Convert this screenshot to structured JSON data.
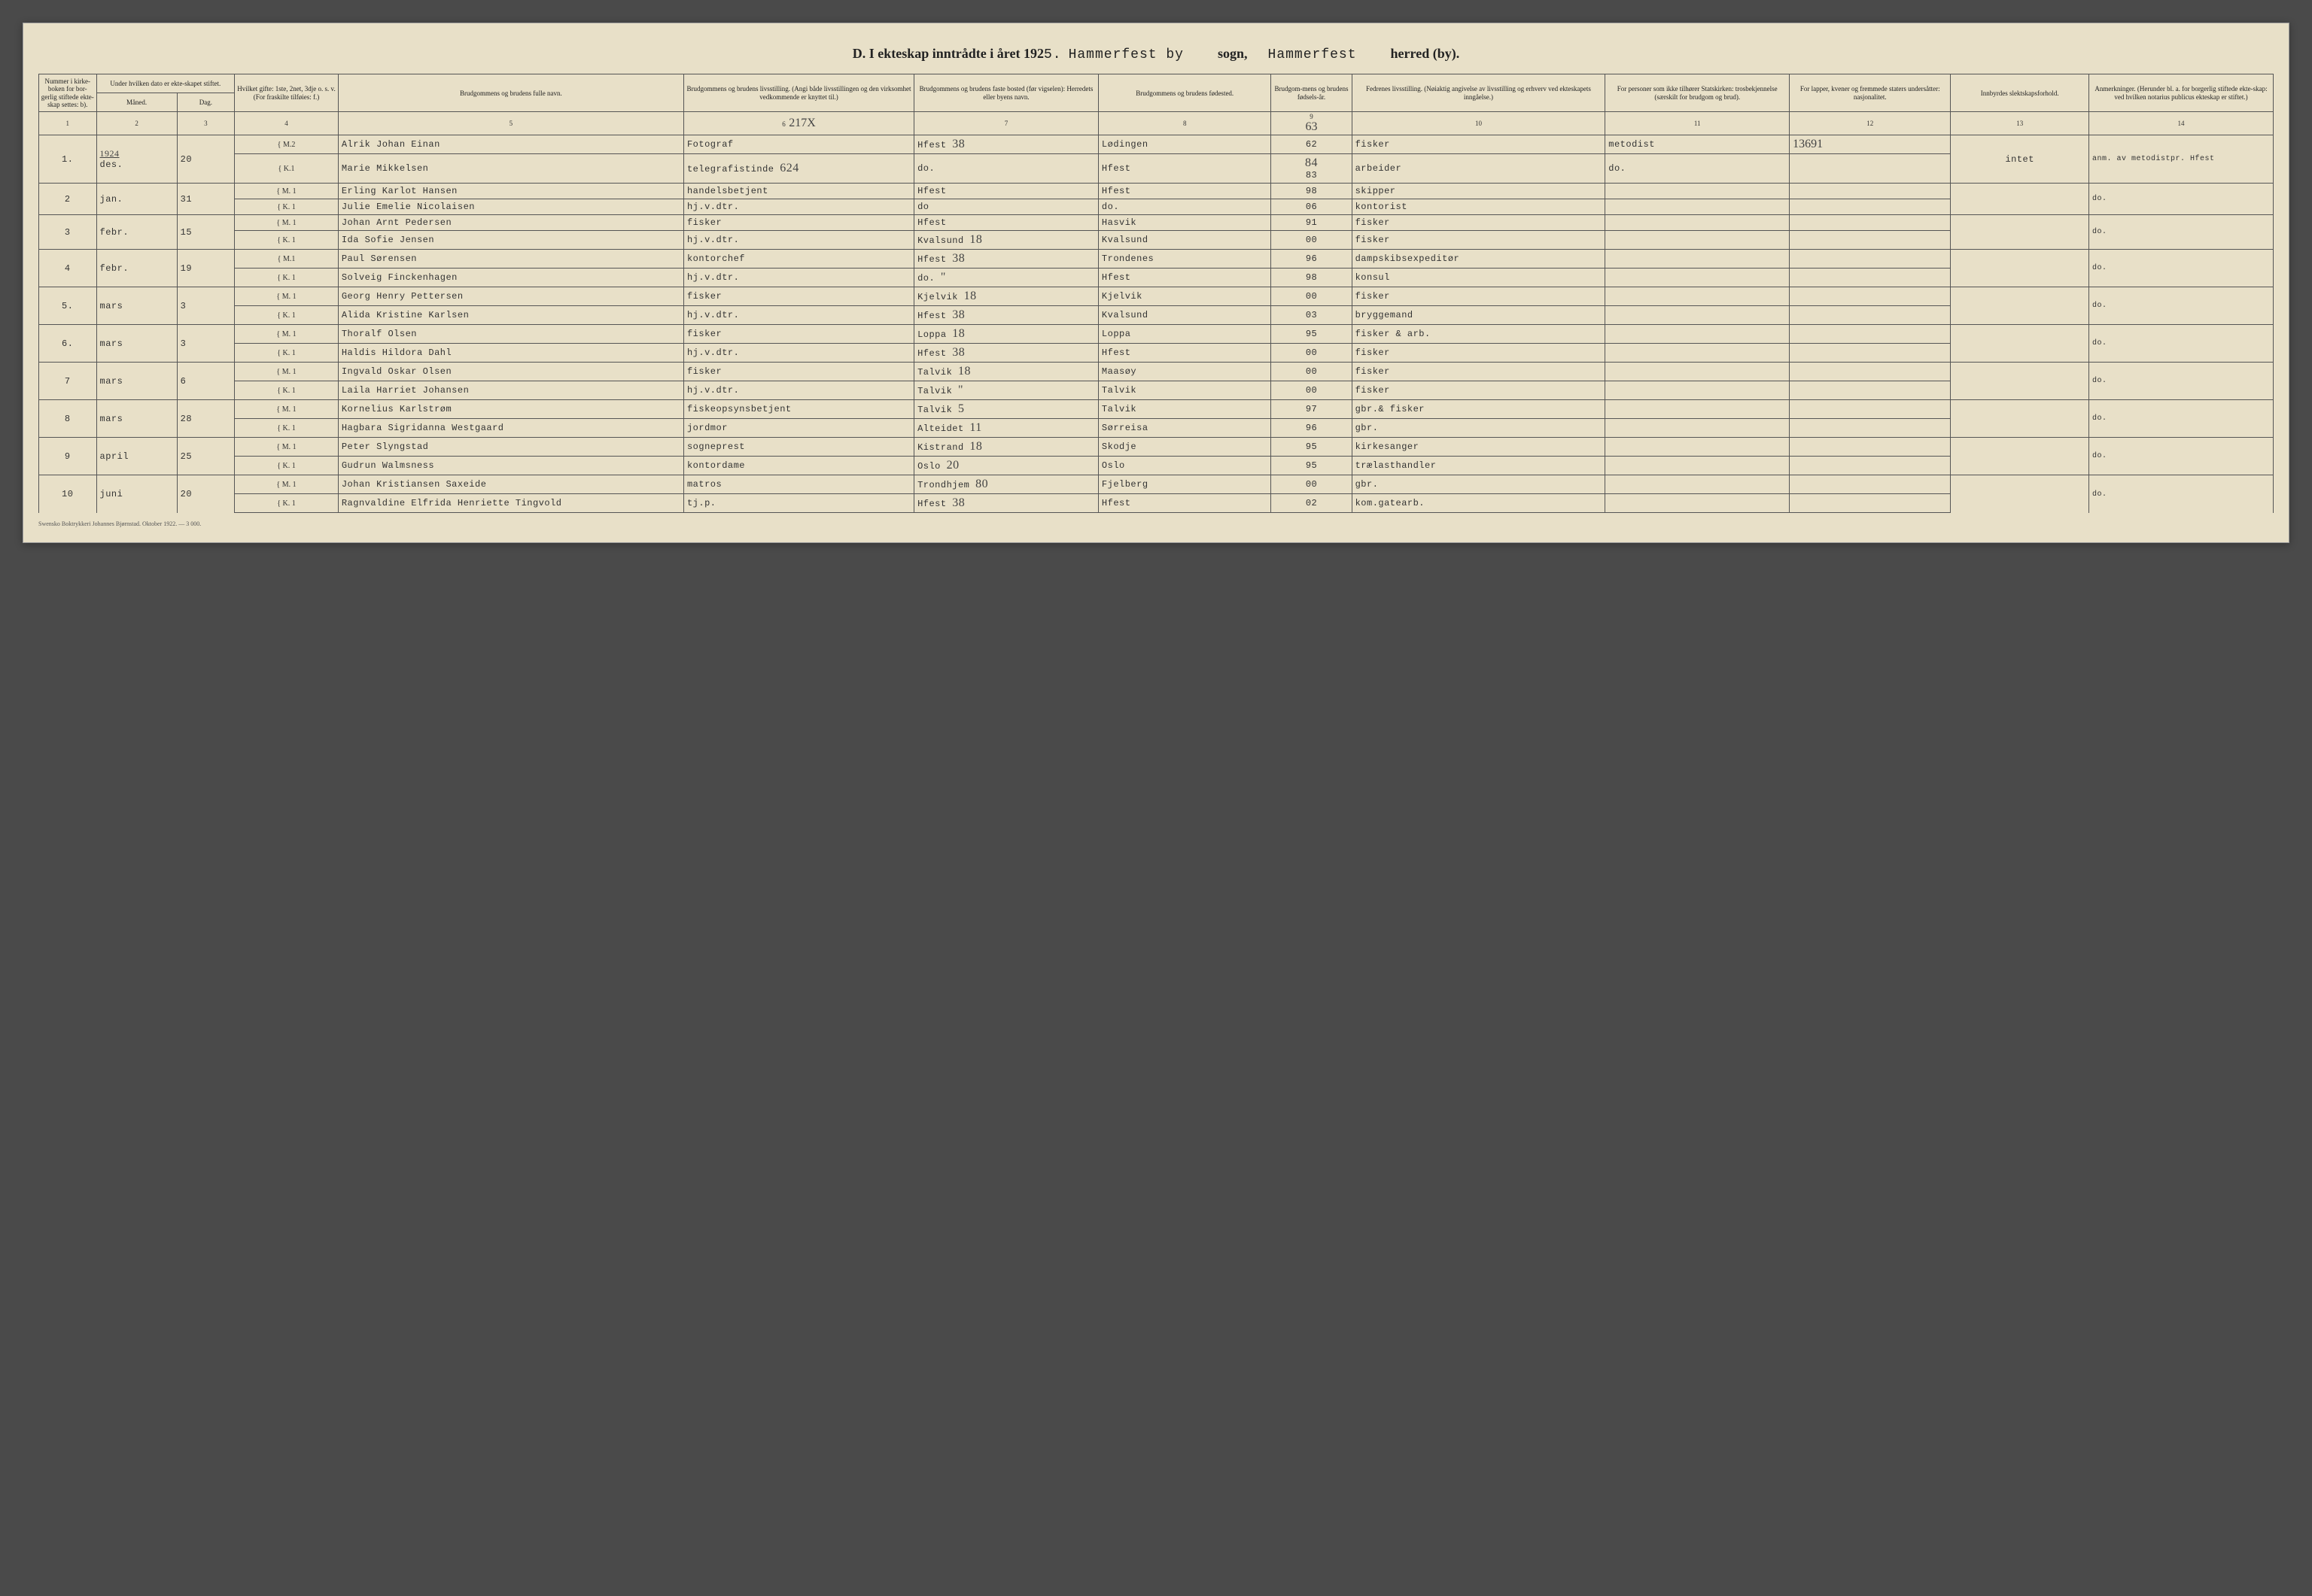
{
  "header": {
    "prefix": "D.  I ekteskap inntrådte i året 192",
    "year_suffix": "5.",
    "place1": "Hammerfest by",
    "label_sogn": "sogn,",
    "place2": "Hammerfest",
    "label_herred": "herred (by)."
  },
  "columns": [
    {
      "n": "1",
      "label": "Nummer i kirke-boken for bor-gerlig stiftede ekte-skap settes: b)."
    },
    {
      "n": "2",
      "label": "Under hvilken dato er ekte-skapet stiftet."
    },
    {
      "n": "3",
      "label": ""
    },
    {
      "n": "4",
      "label": "Hvilket gifte: 1ste, 2net, 3dje o. s. v. (For fraskilte tilføies: f.)"
    },
    {
      "n": "5",
      "label": "Brudgommens og brudens fulle navn."
    },
    {
      "n": "6",
      "label": "Brudgommens og brudens livsstilling. (Angi både livsstillingen og den virksomhet vedkommende er knyttet til.)"
    },
    {
      "n": "7",
      "label": "Brudgommens og brudens faste bosted (før vigselen): Herredets eller byens navn."
    },
    {
      "n": "8",
      "label": "Brudgommens og brudens fødested."
    },
    {
      "n": "9",
      "label": "Brudgom-mens og brudens fødsels-år."
    },
    {
      "n": "10",
      "label": "Fedrenes livsstilling. (Nøiaktig angivelse av livsstilling og erhverv ved ekteskapets inngåelse.)"
    },
    {
      "n": "11",
      "label": "For personer som ikke tilhører Statskirken: trosbekjennelse (særskilt for brudgom og brud)."
    },
    {
      "n": "12",
      "label": "For lapper, kvener og fremmede staters undersåtter: nasjonalitet."
    },
    {
      "n": "13",
      "label": "Innbyrdes slektskapsforhold."
    },
    {
      "n": "14",
      "label": "Anmerkninger. (Herunder bl. a. for borgerlig stiftede ekte-skap: ved hvilken notarius publicus ekteskap er stiftet.)"
    }
  ],
  "sub_date": {
    "a": "Måned.",
    "b": "Dag."
  },
  "handwritten_over_col6": "217X",
  "handwritten_over_col9": "63",
  "entries": [
    {
      "num": "1.",
      "month": "des.",
      "day": "20",
      "m_gift": "M.2",
      "m_name": "Alrik Johan Einan",
      "m_occ": "Fotograf",
      "m_res": "Hfest",
      "m_res_hand": "38",
      "m_born": "Lødingen",
      "m_yr": "62",
      "m_fath": "fisker",
      "m_stat": "metodist",
      "m_nat_hand": "13691",
      "k_gift": "K.1",
      "k_name": "Marie Mikkelsen",
      "k_occ": "telegrafistinde",
      "k_occ_hand": "624",
      "k_res": "do.",
      "k_born": "Hfest",
      "k_yr": "83",
      "k_yr_hand": "84",
      "k_fath": "arbeider",
      "k_stat": "do.",
      "rel": "intet",
      "rem": "anm. av metodistpr. Hfest",
      "year_hand": "1924"
    },
    {
      "num": "2",
      "month": "jan.",
      "day": "31",
      "m_gift": "M. 1",
      "m_name": "Erling Karlot Hansen",
      "m_occ": "handelsbetjent",
      "m_res": "Hfest",
      "m_born": "Hfest",
      "m_yr": "98",
      "m_fath": "skipper",
      "k_gift": "K. 1",
      "k_name": "Julie Emelie Nicolaisen",
      "k_occ": "hj.v.dtr.",
      "k_res": "do",
      "k_born": "do.",
      "k_yr": "06",
      "k_fath": "kontorist",
      "rel": "",
      "rem": "do."
    },
    {
      "num": "3",
      "month": "febr.",
      "day": "15",
      "m_gift": "M. 1",
      "m_name": "Johan Arnt Pedersen",
      "m_occ": "fisker",
      "m_res": "Hfest",
      "m_born": "Hasvik",
      "m_yr": "91",
      "m_fath": "fisker",
      "k_gift": "K. 1",
      "k_name": "Ida Sofie Jensen",
      "k_occ": "hj.v.dtr.",
      "k_res": "Kvalsund",
      "k_res_hand": "18",
      "k_born": "Kvalsund",
      "k_yr": "00",
      "k_fath": "fisker",
      "rel": "",
      "rem": "do."
    },
    {
      "num": "4",
      "month": "febr.",
      "day": "19",
      "m_gift": "M.1",
      "m_name": "Paul Sørensen",
      "m_occ": "kontorchef",
      "m_res": "Hfest",
      "m_res_hand": "38",
      "m_born": "Trondenes",
      "m_yr": "96",
      "m_fath": "dampskibsexpeditør",
      "k_gift": "K. 1",
      "k_name": "Solveig Finckenhagen",
      "k_occ": "hj.v.dtr.",
      "k_res": "do.",
      "k_res_hand": "\"",
      "k_born": "Hfest",
      "k_yr": "98",
      "k_fath": "konsul",
      "rel": "",
      "rem": "do."
    },
    {
      "num": "5.",
      "month": "mars",
      "day": "3",
      "m_gift": "M. 1",
      "m_name": "Georg Henry Pettersen",
      "m_occ": "fisker",
      "m_res": "Kjelvik",
      "m_res_hand": "18",
      "m_born": "Kjelvik",
      "m_yr": "00",
      "m_fath": "fisker",
      "k_gift": "K. 1",
      "k_name": "Alida Kristine Karlsen",
      "k_occ": "hj.v.dtr.",
      "k_res": "Hfest",
      "k_res_hand": "38",
      "k_born": "Kvalsund",
      "k_yr": "03",
      "k_fath": "bryggemand",
      "rel": "",
      "rem": "do."
    },
    {
      "num": "6.",
      "month": "mars",
      "day": "3",
      "m_gift": "M. 1",
      "m_name": "Thoralf Olsen",
      "m_occ": "fisker",
      "m_res": "Loppa",
      "m_res_hand": "18",
      "m_born": "Loppa",
      "m_yr": "95",
      "m_fath": "fisker & arb.",
      "k_gift": "K. 1",
      "k_name": "Haldis Hildora Dahl",
      "k_occ": "hj.v.dtr.",
      "k_res": "Hfest",
      "k_res_hand": "38",
      "k_born": "Hfest",
      "k_yr": "00",
      "k_fath": "fisker",
      "rel": "",
      "rem": "do."
    },
    {
      "num": "7",
      "month": "mars",
      "day": "6",
      "m_gift": "M. 1",
      "m_name": "Ingvald Oskar Olsen",
      "m_occ": "fisker",
      "m_res": "Talvik",
      "m_res_hand": "18",
      "m_born": "Maasøy",
      "m_yr": "00",
      "m_fath": "fisker",
      "k_gift": "K. 1",
      "k_name": "Laila Harriet Johansen",
      "k_occ": "hj.v.dtr.",
      "k_res": "Talvik",
      "k_res_hand": "\"",
      "k_born": "Talvik",
      "k_yr": "00",
      "k_fath": "fisker",
      "rel": "",
      "rem": "do."
    },
    {
      "num": "8",
      "month": "mars",
      "day": "28",
      "m_gift": "M. 1",
      "m_name": "Kornelius Karlstrøm",
      "m_occ": "fiskeopsynsbetjent",
      "m_res": "Talvik",
      "m_res_hand": "5",
      "m_born": "Talvik",
      "m_yr": "97",
      "m_fath": "gbr.& fisker",
      "k_gift": "K. 1",
      "k_name": "Hagbara Sigridanna Westgaard",
      "k_occ": "jordmor",
      "k_res": "Alteidet",
      "k_res_hand": "11",
      "k_born": "Sørreisa",
      "k_yr": "96",
      "k_fath": "gbr.",
      "rel": "",
      "rem": "do."
    },
    {
      "num": "9",
      "month": "april",
      "day": "25",
      "m_gift": "M. 1",
      "m_name": "Peter Slyngstad",
      "m_occ": "sogneprest",
      "m_res": "Kistrand",
      "m_res_hand": "18",
      "m_born": "Skodje",
      "m_yr": "95",
      "m_fath": "kirkesanger",
      "k_gift": "K. 1",
      "k_name": "Gudrun Walmsness",
      "k_occ": "kontordame",
      "k_res": "Oslo",
      "k_res_hand": "20",
      "k_born": "Oslo",
      "k_yr": "95",
      "k_fath": "trælasthandler",
      "rel": "",
      "rem": "do."
    },
    {
      "num": "10",
      "month": "juni",
      "day": "20",
      "m_gift": "M. 1",
      "m_name": "Johan Kristiansen Saxeide",
      "m_occ": "matros",
      "m_res": "Trondhjem",
      "m_res_hand": "80",
      "m_born": "Fjelberg",
      "m_yr": "00",
      "m_fath": "gbr.",
      "k_gift": "K. 1",
      "k_name": "Ragnvaldine Elfrida Henriette Tingvold",
      "k_occ": "tj.p.",
      "k_res": "Hfest",
      "k_res_hand": "38",
      "k_born": "Hfest",
      "k_yr": "02",
      "k_fath": "kom.gatearb.",
      "rel": "",
      "rem": "do."
    }
  ],
  "footer": "Swensko Boktrykkeri Johannes Bjørnstad.  Oktober 1922. — 3 000."
}
